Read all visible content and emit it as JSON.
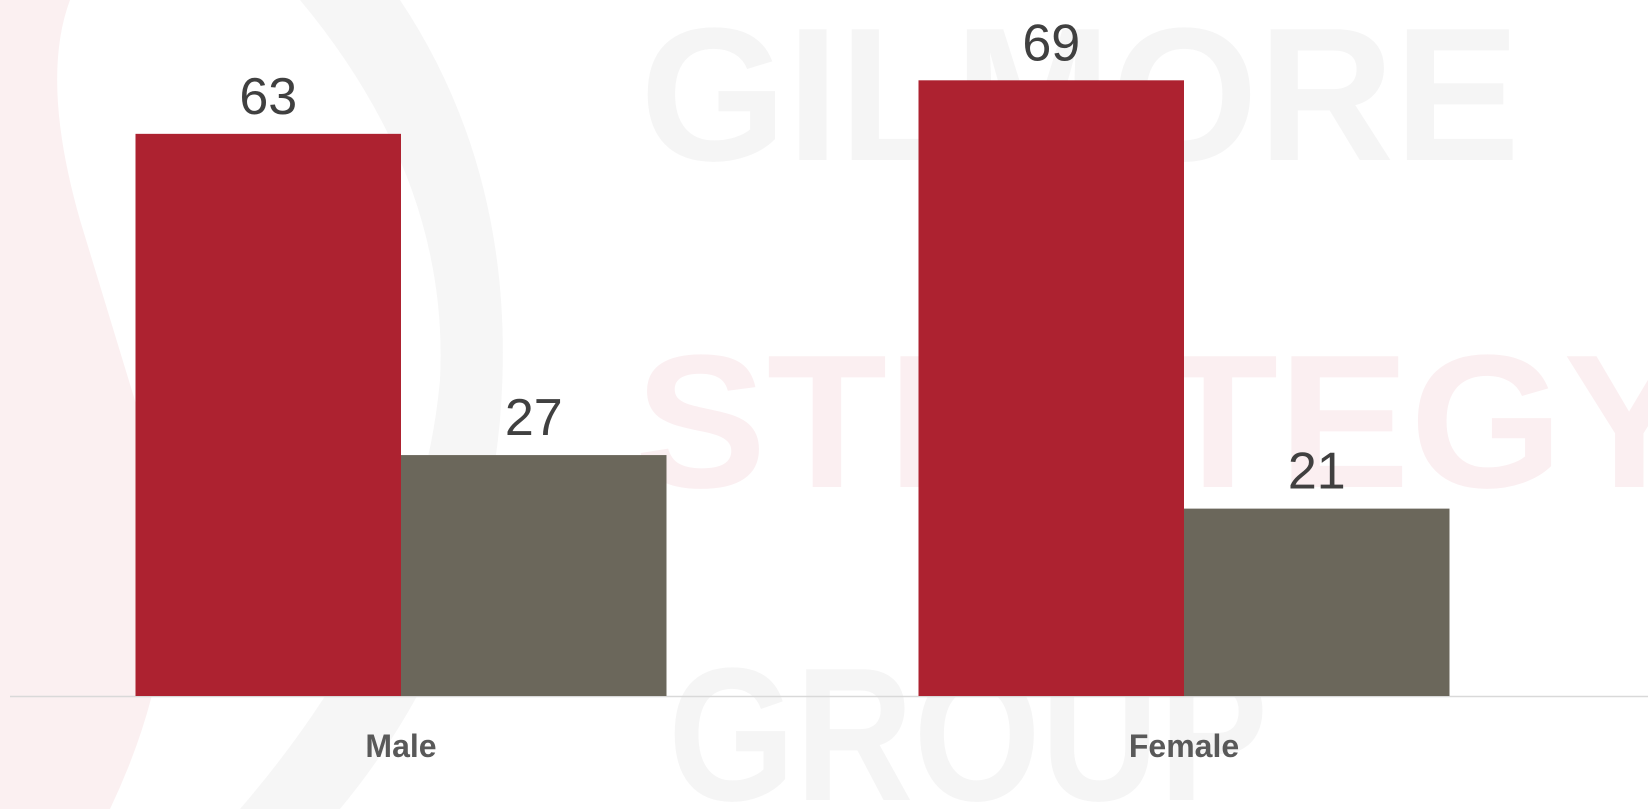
{
  "chart_data": {
    "type": "bar",
    "watermark": [
      "GILMORE",
      "STRATEGY",
      "GROUP"
    ],
    "categories": [
      "Male",
      "Female"
    ],
    "series": [
      {
        "color": "#ad2230",
        "values": [
          63,
          69
        ]
      },
      {
        "color": "#6b675b",
        "values": [
          27,
          21
        ]
      }
    ],
    "ylim": [
      0,
      78
    ],
    "grid": false
  }
}
